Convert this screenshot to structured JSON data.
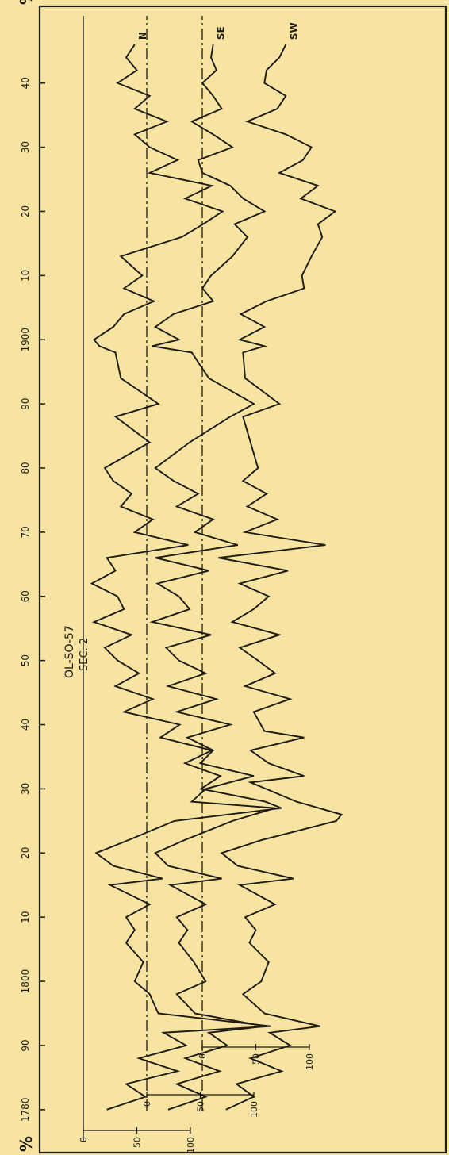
{
  "page": {
    "background": "#f7e3a2",
    "ink": "#1d1a12",
    "frame_symbols": {
      "top_left": "%",
      "bottom_left": "%"
    }
  },
  "chart_data": {
    "type": "line",
    "orientation": "rotated-90",
    "title": "OL-SO-57",
    "subtitle": "SEC. 2",
    "xlabel": "",
    "ylabel": "%",
    "xlim": [
      1778,
      1948
    ],
    "x_ticks": [
      1780,
      1790,
      1800,
      1810,
      1820,
      1830,
      1840,
      1850,
      1860,
      1870,
      1880,
      1890,
      1900,
      1910,
      1920,
      1930,
      1940
    ],
    "x_tick_labels": [
      "1780",
      "90",
      "1800",
      "10",
      "20",
      "30",
      "40",
      "50",
      "60",
      "70",
      "80",
      "90",
      "1900",
      "10",
      "20",
      "30",
      "40"
    ],
    "y_ticks": [
      0,
      50,
      100
    ],
    "y_tick_labels": [
      "0",
      "50",
      "100"
    ],
    "grid": false,
    "series": [
      {
        "name": "SW",
        "y_scale_labels": [
          "100",
          "50",
          "0"
        ],
        "x": [
          1780,
          1782,
          1784,
          1786,
          1788,
          1790,
          1792,
          1793,
          1795,
          1798,
          1800,
          1803,
          1806,
          1808,
          1810,
          1812,
          1815,
          1816,
          1818,
          1820,
          1822,
          1825,
          1826,
          1828,
          1831,
          1832,
          1834,
          1836,
          1838,
          1839,
          1842,
          1844,
          1846,
          1848,
          1850,
          1852,
          1854,
          1856,
          1858,
          1860,
          1862,
          1864,
          1866,
          1868,
          1870,
          1872,
          1874,
          1876,
          1878,
          1880,
          1884,
          1888,
          1890,
          1894,
          1898,
          1899,
          1900,
          1902,
          1904,
          1906,
          1908,
          1910,
          1913,
          1916,
          1918,
          1920,
          1922,
          1924,
          1926,
          1928,
          1930,
          1932,
          1934,
          1936,
          1938,
          1940,
          1942,
          1944,
          1946
        ],
        "values": [
          22,
          48,
          32,
          74,
          45,
          82,
          63,
          110,
          58,
          38,
          55,
          62,
          44,
          50,
          40,
          68,
          35,
          85,
          33,
          18,
          55,
          125,
          130,
          88,
          45,
          95,
          62,
          45,
          95,
          58,
          48,
          82,
          40,
          68,
          52,
          35,
          72,
          28,
          48,
          62,
          35,
          80,
          15,
          115,
          40,
          70,
          42,
          60,
          38,
          52,
          45,
          38,
          72,
          40,
          38,
          58,
          35,
          58,
          36,
          60,
          95,
          93,
          102,
          112,
          108,
          124,
          92,
          108,
          72,
          94,
          102,
          78,
          42,
          70,
          78,
          58,
          60,
          72,
          78
        ]
      },
      {
        "name": "SE",
        "y_scale_labels": [
          "100",
          "50",
          "0"
        ],
        "x": [
          1780,
          1782,
          1784,
          1786,
          1788,
          1790,
          1792,
          1793,
          1795,
          1798,
          1800,
          1803,
          1806,
          1808,
          1810,
          1812,
          1815,
          1816,
          1818,
          1820,
          1822,
          1825,
          1827,
          1828,
          1830,
          1832,
          1834,
          1836,
          1838,
          1840,
          1842,
          1844,
          1846,
          1848,
          1850,
          1852,
          1854,
          1856,
          1858,
          1860,
          1862,
          1864,
          1866,
          1868,
          1870,
          1872,
          1874,
          1876,
          1878,
          1880,
          1884,
          1888,
          1890,
          1894,
          1898,
          1899,
          1900,
          1902,
          1904,
          1906,
          1908,
          1910,
          1913,
          1916,
          1918,
          1920,
          1922,
          1924,
          1926,
          1928,
          1930,
          1932,
          1934,
          1936,
          1938,
          1940,
          1942,
          1944,
          1946
        ],
        "values": [
          20,
          55,
          28,
          68,
          36,
          75,
          58,
          110,
          45,
          28,
          55,
          44,
          30,
          38,
          28,
          55,
          22,
          70,
          20,
          8,
          35,
          80,
          120,
          42,
          55,
          100,
          50,
          62,
          38,
          78,
          28,
          65,
          20,
          55,
          30,
          18,
          60,
          5,
          40,
          30,
          10,
          58,
          8,
          85,
          45,
          62,
          28,
          48,
          25,
          8,
          40,
          78,
          100,
          58,
          42,
          5,
          30,
          8,
          25,
          62,
          52,
          60,
          80,
          94,
          82,
          110,
          90,
          78,
          52,
          48,
          80,
          62,
          42,
          70,
          62,
          52,
          65,
          60,
          62
        ]
      },
      {
        "name": "N",
        "y_scale_labels": [
          "100",
          "50",
          "0"
        ],
        "x": [
          1780,
          1782,
          1784,
          1786,
          1788,
          1790,
          1792,
          1793,
          1795,
          1798,
          1800,
          1803,
          1806,
          1808,
          1810,
          1812,
          1815,
          1816,
          1818,
          1820,
          1822,
          1825,
          1827,
          1828,
          1830,
          1832,
          1834,
          1836,
          1838,
          1840,
          1842,
          1844,
          1846,
          1848,
          1850,
          1852,
          1854,
          1856,
          1858,
          1860,
          1862,
          1864,
          1866,
          1868,
          1870,
          1872,
          1874,
          1876,
          1878,
          1880,
          1884,
          1888,
          1890,
          1894,
          1898,
          1899,
          1900,
          1902,
          1904,
          1906,
          1908,
          1910,
          1913,
          1916,
          1918,
          1920,
          1922,
          1924,
          1926,
          1928,
          1930,
          1932,
          1934,
          1936,
          1938,
          1940,
          1942,
          1944,
          1946
        ],
        "values": [
          22,
          58,
          40,
          88,
          52,
          96,
          75,
          175,
          70,
          62,
          48,
          56,
          40,
          48,
          40,
          62,
          25,
          74,
          28,
          12,
          42,
          85,
          185,
          170,
          110,
          128,
          95,
          120,
          72,
          90,
          38,
          65,
          30,
          52,
          32,
          20,
          45,
          10,
          38,
          32,
          8,
          30,
          22,
          98,
          48,
          65,
          35,
          45,
          28,
          20,
          62,
          30,
          70,
          35,
          30,
          15,
          10,
          28,
          38,
          66,
          38,
          55,
          35,
          92,
          112,
          130,
          95,
          120,
          62,
          88,
          62,
          48,
          78,
          48,
          62,
          32,
          50,
          40,
          48
        ]
      }
    ]
  }
}
